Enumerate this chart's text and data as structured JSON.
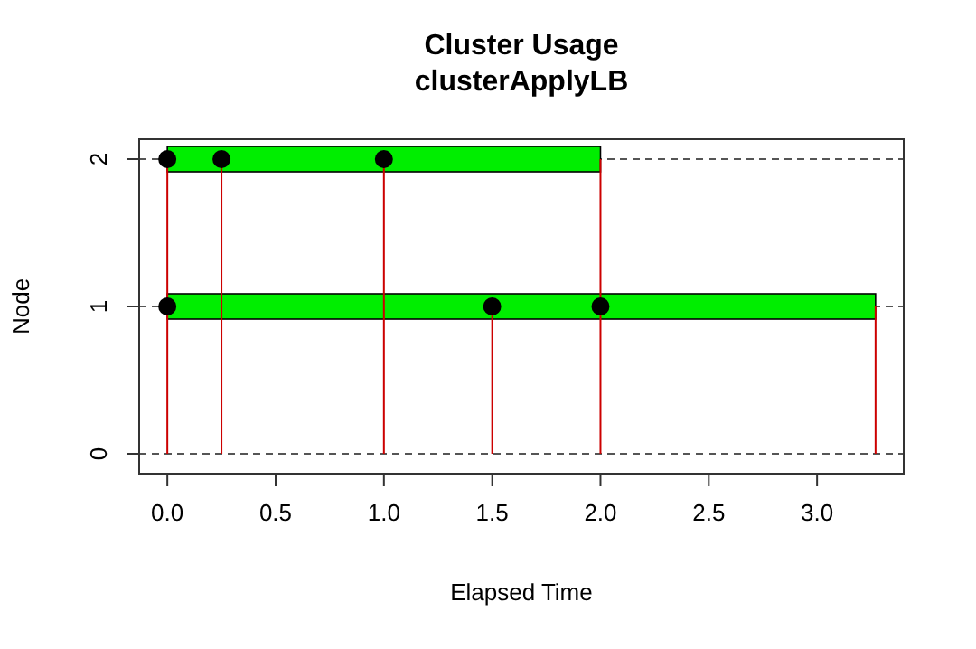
{
  "chart_data": {
    "type": "line",
    "orientation": "horizontal",
    "title": "Cluster Usage",
    "subtitle": "clusterApplyLB",
    "xlabel": "Elapsed Time",
    "ylabel": "Node",
    "categories": [
      "2",
      "1",
      "0"
    ],
    "xlim": [
      -0.13,
      3.4
    ],
    "xticks": [
      {
        "value": 0,
        "label": "0.0"
      },
      {
        "value": 0.5,
        "label": "0.5"
      },
      {
        "value": 1,
        "label": "1.0"
      },
      {
        "value": 1.5,
        "label": "1.5"
      },
      {
        "value": 2,
        "label": "2.0"
      },
      {
        "value": 2.5,
        "label": "2.5"
      },
      {
        "value": 3,
        "label": "3.0"
      }
    ],
    "grid": "y",
    "series": [
      {
        "color": "#cc0000",
        "x": [
          "0",
          "2"
        ],
        "values": [
          0,
          0
        ]
      },
      {
        "color": "#cc0000",
        "x": [
          "0",
          "2"
        ],
        "values": [
          0.25,
          0.25
        ]
      },
      {
        "color": "#cc0000",
        "x": [
          "0",
          "2"
        ],
        "values": [
          1,
          1
        ]
      },
      {
        "color": "#cc0000",
        "x": [
          "0",
          "2"
        ],
        "values": [
          2,
          2
        ]
      },
      {
        "color": "#cc0000",
        "x": [
          "0",
          "1"
        ],
        "values": [
          1.5,
          1.5
        ]
      },
      {
        "color": "#cc0000",
        "x": [
          "0",
          "1"
        ],
        "values": [
          3.27,
          3.27
        ]
      },
      {
        "type": "bar",
        "color": "#00ee00",
        "values": [
          2.0,
          3.27,
          null
        ],
        "base": [
          0,
          0,
          null
        ]
      },
      {
        "type": "scatter",
        "color": "#000000",
        "marker": "circle",
        "x": [
          "2",
          "2",
          "2",
          "1",
          "1",
          "1"
        ],
        "values": [
          0,
          0.25,
          1,
          0,
          1.5,
          2
        ]
      }
    ]
  }
}
